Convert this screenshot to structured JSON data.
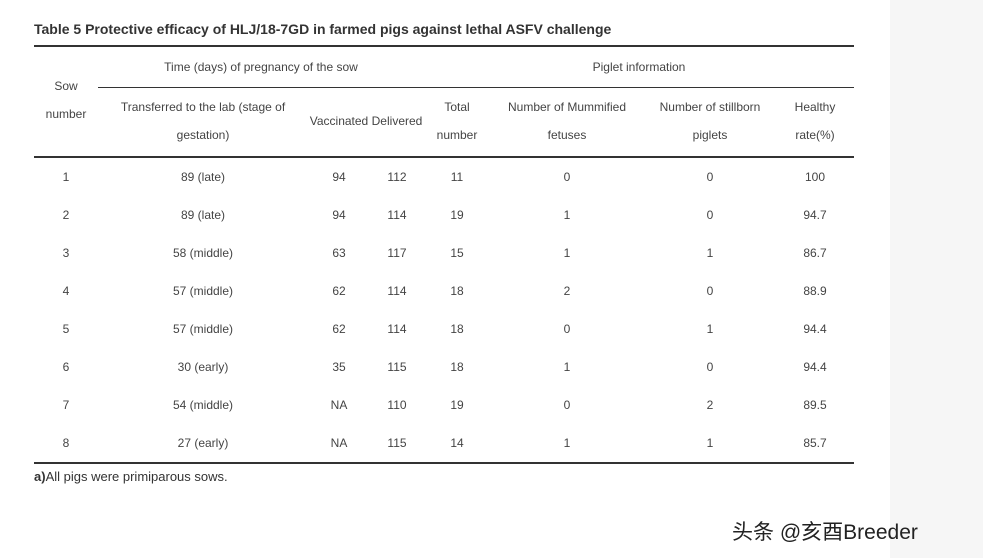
{
  "table": {
    "caption": "Table 5  Protective efficacy of HLJ/18-7GD in farmed pigs against lethal ASFV challenge",
    "headers": {
      "sow_number_1": "Sow",
      "sow_number_2": "number",
      "time_group": "Time (days) of pregnancy of the sow",
      "piglet_group": "Piglet information",
      "transferred_1": "Transferred to the lab (stage of",
      "transferred_2": "gestation)",
      "vaccinated": "Vaccinated",
      "delivered": "Delivered",
      "total_1": "Total",
      "total_2": "number",
      "mummified_1": "Number of Mummified",
      "mummified_2": "fetuses",
      "stillborn_1": "Number of stillborn",
      "stillborn_2": "piglets",
      "healthy_1": "Healthy",
      "healthy_2": "rate(%)"
    },
    "rows": [
      {
        "sow": "1",
        "transferred": "89 (late)",
        "vaccinated": "94",
        "delivered": "112",
        "total": "11",
        "mummified": "0",
        "stillborn": "0",
        "healthy": "100"
      },
      {
        "sow": "2",
        "transferred": "89 (late)",
        "vaccinated": "94",
        "delivered": "114",
        "total": "19",
        "mummified": "1",
        "stillborn": "0",
        "healthy": "94.7"
      },
      {
        "sow": "3",
        "transferred": "58 (middle)",
        "vaccinated": "63",
        "delivered": "117",
        "total": "15",
        "mummified": "1",
        "stillborn": "1",
        "healthy": "86.7"
      },
      {
        "sow": "4",
        "transferred": "57 (middle)",
        "vaccinated": "62",
        "delivered": "114",
        "total": "18",
        "mummified": "2",
        "stillborn": "0",
        "healthy": "88.9"
      },
      {
        "sow": "5",
        "transferred": "57 (middle)",
        "vaccinated": "62",
        "delivered": "114",
        "total": "18",
        "mummified": "0",
        "stillborn": "1",
        "healthy": "94.4"
      },
      {
        "sow": "6",
        "transferred": "30 (early)",
        "vaccinated": "35",
        "delivered": "115",
        "total": "18",
        "mummified": "1",
        "stillborn": "0",
        "healthy": "94.4"
      },
      {
        "sow": "7",
        "transferred": "54 (middle)",
        "vaccinated": "NA",
        "delivered": "110",
        "total": "19",
        "mummified": "0",
        "stillborn": "2",
        "healthy": "89.5"
      },
      {
        "sow": "8",
        "transferred": "27 (early)",
        "vaccinated": "NA",
        "delivered": "115",
        "total": "14",
        "mummified": "1",
        "stillborn": "1",
        "healthy": "85.7"
      }
    ],
    "footnote_marker": "a)",
    "footnote_text": "All pigs were primiparous sows."
  },
  "watermark": "头条 @亥酉Breeder"
}
